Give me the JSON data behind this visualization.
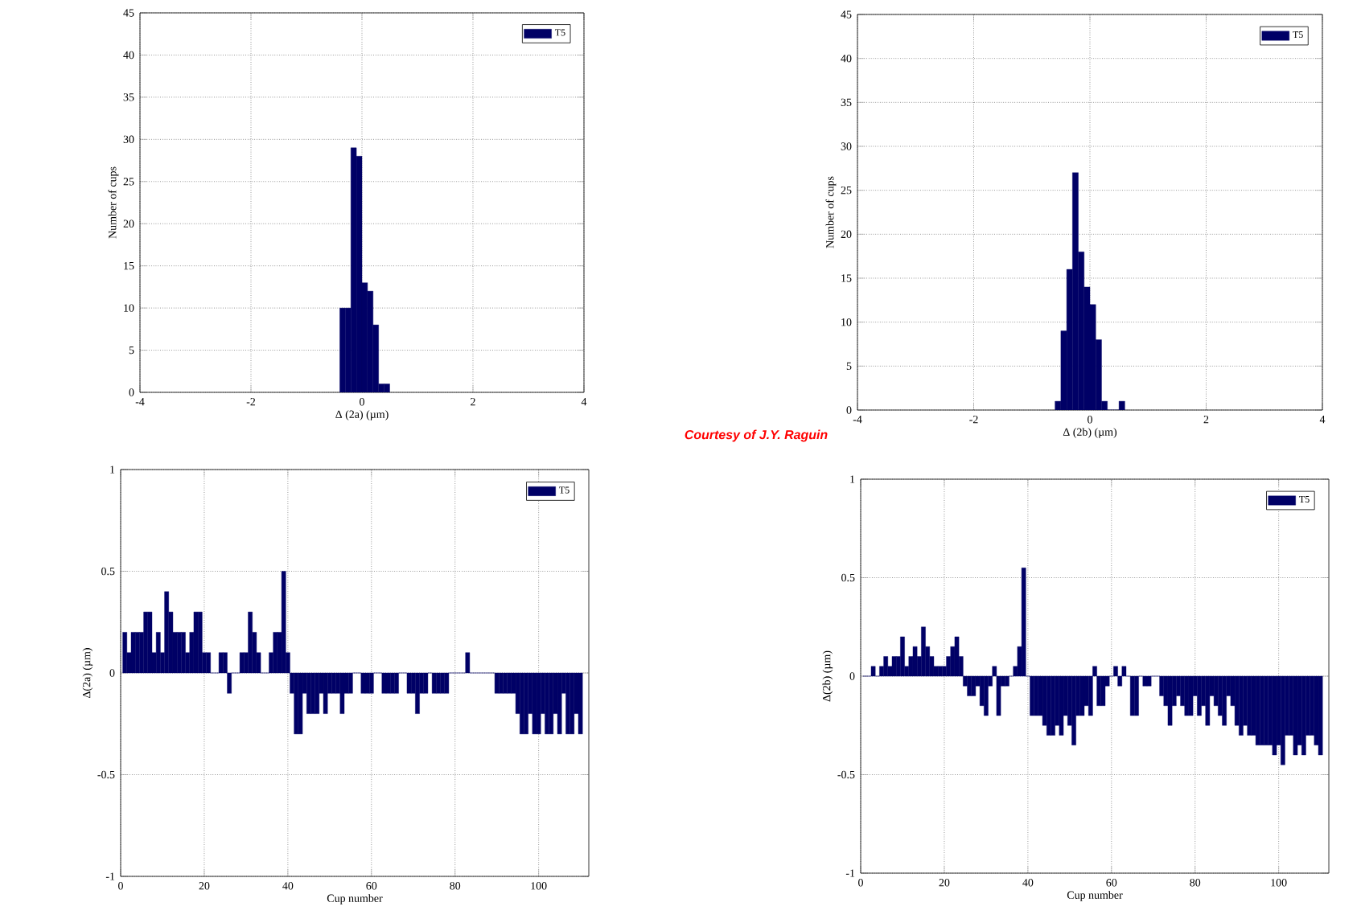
{
  "chart_data": [
    {
      "type": "histogram",
      "xlabel": "Δ (2a) (µm)",
      "ylabel": "Number of cups",
      "bins": [
        -0.4,
        -0.3,
        -0.2,
        -0.1,
        0,
        0.1,
        0.2,
        0.3,
        0.4,
        0.5
      ],
      "series": [
        {
          "name": "T5",
          "color": "#000066",
          "values": [
            10,
            10,
            29,
            28,
            13,
            12,
            8,
            1,
            1
          ]
        }
      ],
      "xlim": [
        -4,
        4
      ],
      "xticks": [
        -4,
        -2,
        0,
        2,
        4
      ],
      "ylim": [
        0,
        45
      ],
      "yticks": [
        0,
        5,
        10,
        15,
        20,
        25,
        30,
        35,
        40,
        45
      ],
      "grid": true,
      "legend": "top right",
      "annotations": [
        "Courtesy  of J.Y. Raguin"
      ]
    },
    {
      "type": "histogram",
      "xlabel": "Δ (2b) (µm)",
      "ylabel": "Number of cups",
      "bins": [
        -0.6,
        -0.5,
        -0.4,
        -0.3,
        -0.2,
        -0.1,
        0,
        0.1,
        0.2,
        0.3,
        0.4,
        0.5,
        0.6
      ],
      "series": [
        {
          "name": "T5",
          "color": "#000066",
          "values": [
            1,
            9,
            16,
            27,
            18,
            14,
            12,
            8,
            1,
            0,
            0,
            1
          ]
        }
      ],
      "xlim": [
        -4,
        4
      ],
      "xticks": [
        -4,
        -2,
        0,
        2,
        4
      ],
      "ylim": [
        0,
        45
      ],
      "yticks": [
        0,
        5,
        10,
        15,
        20,
        25,
        30,
        35,
        40,
        45
      ],
      "grid": true,
      "legend": "top right"
    },
    {
      "type": "bar",
      "xlabel": "Cup number",
      "ylabel": "Δ(2a) (µm)",
      "x": [
        1,
        2,
        3,
        4,
        5,
        6,
        7,
        8,
        9,
        10,
        11,
        12,
        13,
        14,
        15,
        16,
        17,
        18,
        19,
        20,
        21,
        22,
        23,
        24,
        25,
        26,
        27,
        28,
        29,
        30,
        31,
        32,
        33,
        34,
        35,
        36,
        37,
        38,
        39,
        40,
        41,
        42,
        43,
        44,
        45,
        46,
        47,
        48,
        49,
        50,
        51,
        52,
        53,
        54,
        55,
        56,
        57,
        58,
        59,
        60,
        61,
        62,
        63,
        64,
        65,
        66,
        67,
        68,
        69,
        70,
        71,
        72,
        73,
        74,
        75,
        76,
        77,
        78,
        79,
        80,
        81,
        82,
        83,
        84,
        85,
        86,
        87,
        88,
        89,
        90,
        91,
        92,
        93,
        94,
        95,
        96,
        97,
        98,
        99,
        100,
        101,
        102,
        103,
        104,
        105,
        106,
        107,
        108,
        109,
        110
      ],
      "series": [
        {
          "name": "T5",
          "color": "#000066",
          "values": [
            0.2,
            0.1,
            0.2,
            0.2,
            0.2,
            0.3,
            0.3,
            0.1,
            0.2,
            0.1,
            0.4,
            0.3,
            0.2,
            0.2,
            0.2,
            0.1,
            0.2,
            0.3,
            0.3,
            0.1,
            0.1,
            0,
            0,
            0.1,
            0.1,
            -0.1,
            0,
            0,
            0.1,
            0.1,
            0.3,
            0.2,
            0.1,
            0,
            0,
            0.1,
            0.2,
            0.2,
            0.5,
            0.1,
            -0.1,
            -0.3,
            -0.3,
            -0.1,
            -0.2,
            -0.2,
            -0.2,
            -0.1,
            -0.2,
            -0.1,
            -0.1,
            -0.1,
            -0.2,
            -0.1,
            -0.1,
            0,
            0,
            -0.1,
            -0.1,
            -0.1,
            0,
            0,
            -0.1,
            -0.1,
            -0.1,
            -0.1,
            0,
            0,
            -0.1,
            -0.1,
            -0.2,
            -0.1,
            -0.1,
            0,
            -0.1,
            -0.1,
            -0.1,
            -0.1,
            0,
            0,
            0,
            0,
            0.1,
            0,
            0,
            0,
            0,
            0,
            0,
            -0.1,
            -0.1,
            -0.1,
            -0.1,
            -0.1,
            -0.2,
            -0.3,
            -0.3,
            -0.2,
            -0.3,
            -0.3,
            -0.2,
            -0.3,
            -0.3,
            -0.2,
            -0.3,
            -0.1,
            -0.3,
            -0.3,
            -0.2,
            -0.3
          ]
        }
      ],
      "xlim": [
        0,
        112
      ],
      "xticks": [
        0,
        20,
        40,
        60,
        80,
        100
      ],
      "ylim": [
        -1,
        1
      ],
      "yticks": [
        -1,
        -0.5,
        0,
        0.5,
        1
      ],
      "grid": true,
      "legend": "top right"
    },
    {
      "type": "bar",
      "xlabel": "Cup number",
      "ylabel": "Δ(2b) (µm)",
      "x": [
        1,
        2,
        3,
        4,
        5,
        6,
        7,
        8,
        9,
        10,
        11,
        12,
        13,
        14,
        15,
        16,
        17,
        18,
        19,
        20,
        21,
        22,
        23,
        24,
        25,
        26,
        27,
        28,
        29,
        30,
        31,
        32,
        33,
        34,
        35,
        36,
        37,
        38,
        39,
        40,
        41,
        42,
        43,
        44,
        45,
        46,
        47,
        48,
        49,
        50,
        51,
        52,
        53,
        54,
        55,
        56,
        57,
        58,
        59,
        60,
        61,
        62,
        63,
        64,
        65,
        66,
        67,
        68,
        69,
        70,
        71,
        72,
        73,
        74,
        75,
        76,
        77,
        78,
        79,
        80,
        81,
        82,
        83,
        84,
        85,
        86,
        87,
        88,
        89,
        90,
        91,
        92,
        93,
        94,
        95,
        96,
        97,
        98,
        99,
        100,
        101,
        102,
        103,
        104,
        105,
        106,
        107,
        108,
        109,
        110
      ],
      "series": [
        {
          "name": "T5",
          "color": "#000066",
          "values": [
            0,
            0,
            0.05,
            0,
            0.05,
            0.1,
            0.05,
            0.1,
            0.1,
            0.2,
            0.05,
            0.1,
            0.15,
            0.1,
            0.25,
            0.15,
            0.1,
            0.05,
            0.05,
            0.05,
            0.1,
            0.15,
            0.2,
            0.1,
            -0.05,
            -0.1,
            -0.1,
            -0.05,
            -0.15,
            -0.2,
            -0.05,
            0.05,
            -0.2,
            -0.05,
            -0.05,
            0,
            0.05,
            0.15,
            0.55,
            0,
            -0.2,
            -0.2,
            -0.2,
            -0.25,
            -0.3,
            -0.3,
            -0.25,
            -0.3,
            -0.2,
            -0.25,
            -0.35,
            -0.2,
            -0.2,
            -0.15,
            -0.2,
            0.05,
            -0.15,
            -0.15,
            -0.05,
            0,
            0.05,
            -0.05,
            0.05,
            0,
            -0.2,
            -0.2,
            0,
            -0.05,
            -0.05,
            0,
            0,
            -0.1,
            -0.15,
            -0.25,
            -0.15,
            -0.1,
            -0.15,
            -0.2,
            -0.2,
            -0.1,
            -0.2,
            -0.15,
            -0.25,
            -0.1,
            -0.15,
            -0.2,
            -0.25,
            -0.1,
            -0.15,
            -0.25,
            -0.3,
            -0.25,
            -0.3,
            -0.3,
            -0.35,
            -0.35,
            -0.35,
            -0.35,
            -0.4,
            -0.35,
            -0.45,
            -0.3,
            -0.3,
            -0.4,
            -0.35,
            -0.4,
            -0.3,
            -0.3,
            -0.35,
            -0.4
          ]
        }
      ],
      "xlim": [
        0,
        112
      ],
      "xticks": [
        0,
        20,
        40,
        60,
        80,
        100
      ],
      "ylim": [
        -1,
        1
      ],
      "yticks": [
        -1,
        -0.5,
        0,
        0.5,
        1
      ],
      "grid": true,
      "legend": "top right"
    }
  ]
}
